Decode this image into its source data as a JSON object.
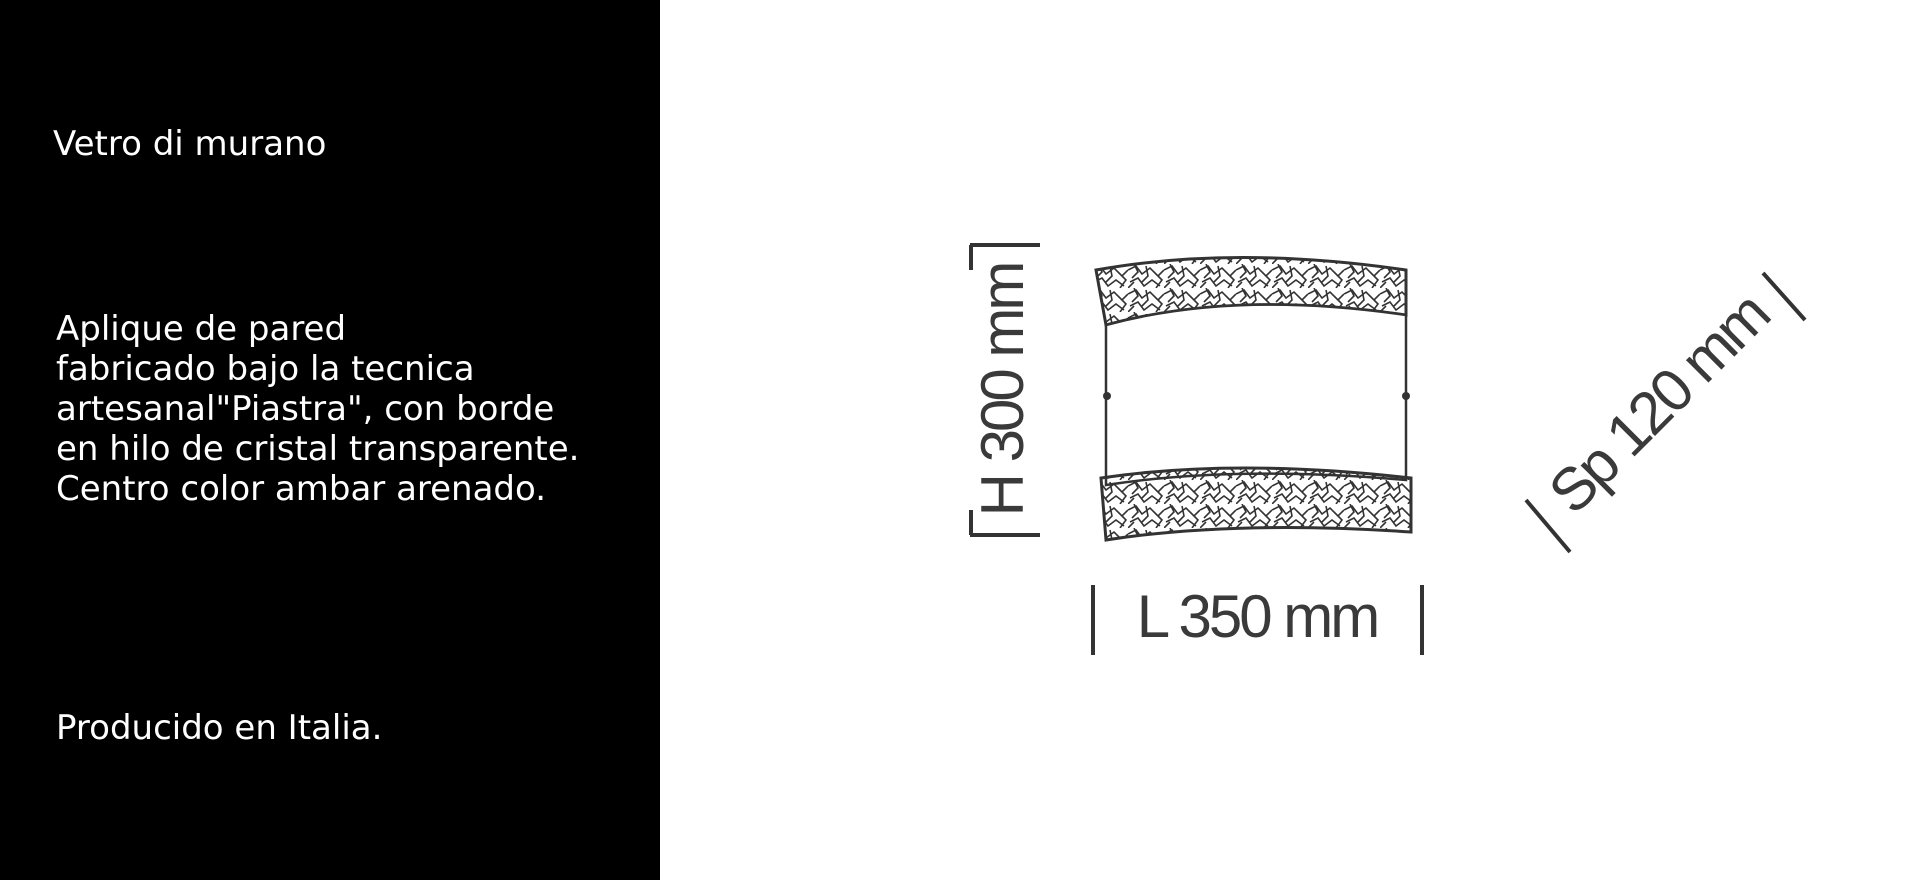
{
  "product": {
    "material": "Vetro di murano",
    "description_lines": [
      "Aplique de pared",
      "fabricado bajo la tecnica",
      "artesanal\"Piastra\", con borde",
      "en hilo de cristal transparente.",
      "Centro color ambar arenado."
    ],
    "origin": "Producido en Italia."
  },
  "dimensions": {
    "height": "H 300 mm",
    "length": "L 350 mm",
    "depth": "Sp 120 mm"
  },
  "colors": {
    "panel_background": "#000000",
    "panel_text": "#ffffff",
    "drawing_stroke": "#333333",
    "dimension_text": "#3a3a3a"
  }
}
